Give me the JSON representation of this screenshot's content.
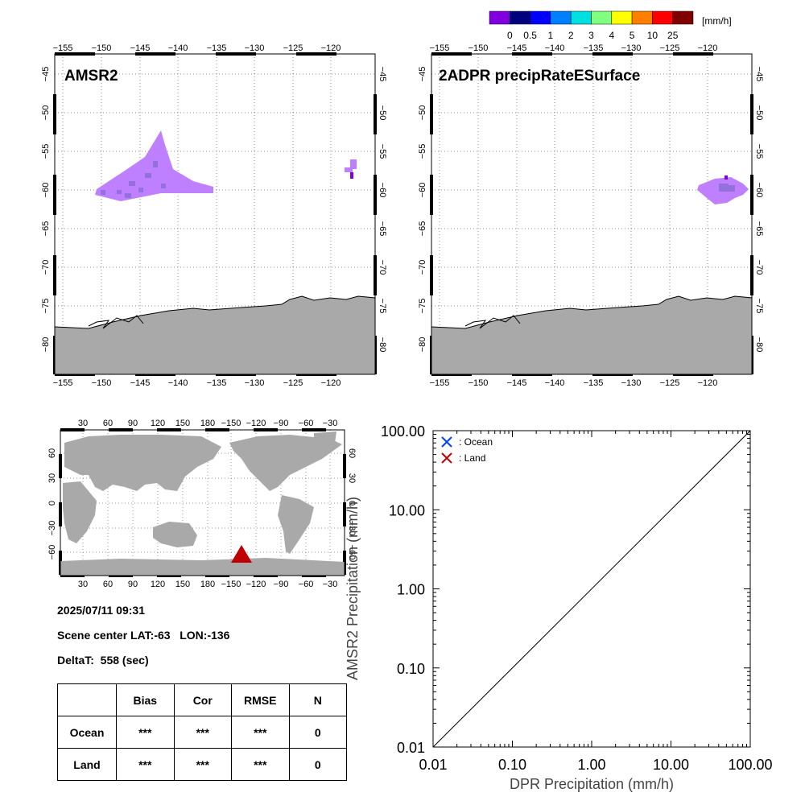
{
  "colorbar": {
    "unit": "[mm/h]",
    "colors": [
      "#8000e0",
      "#00007f",
      "#0000ff",
      "#0080ff",
      "#00e0e0",
      "#80ff80",
      "#ffff00",
      "#ff8000",
      "#ff0000",
      "#800000"
    ],
    "labels": [
      "0",
      "0.5",
      "1",
      "2",
      "3",
      "4",
      "5",
      "10",
      "25"
    ]
  },
  "maps": {
    "lon_ticks": [
      "−155",
      "−150",
      "−145",
      "−140",
      "−135",
      "−130",
      "−125",
      "−120"
    ],
    "lat_ticks": [
      "−45",
      "−50",
      "−55",
      "−60",
      "−65",
      "−70",
      "−75",
      "−80"
    ],
    "amsr2_title": "AMSR2",
    "dpr_title": "2ADPR precipRateESurface",
    "land_color": "#a9a9a9",
    "rain_color": "#bf80ff",
    "heavy_color": "#9370db"
  },
  "globe": {
    "lon_ticks": [
      "30",
      "60",
      "90",
      "120",
      "150",
      "180",
      "−150",
      "−120",
      "−90",
      "−60",
      "−30"
    ],
    "lat_ticks": [
      "60",
      "30",
      "0",
      "−30",
      "−60"
    ],
    "marker_color": "#c00000"
  },
  "info": {
    "datetime": "2025/07/11 09:31",
    "center": "Scene center LAT:-63   LON:-136",
    "deltat": "DeltaT:  558 (sec)"
  },
  "stats": {
    "headers": [
      "",
      "Bias",
      "Cor",
      "RMSE",
      "N"
    ],
    "rows": [
      {
        "label": "Ocean",
        "bias": "***",
        "cor": "***",
        "rmse": "***",
        "n": "0"
      },
      {
        "label": "Land",
        "bias": "***",
        "cor": "***",
        "rmse": "***",
        "n": "0"
      }
    ]
  },
  "chart_data": {
    "type": "scatter",
    "xlabel": "DPR Precipitation (mm/h)",
    "ylabel": "AMSR2 Precipitation (mm/h)",
    "xscale": "log",
    "yscale": "log",
    "xlim": [
      0.01,
      100
    ],
    "ylim": [
      0.01,
      100
    ],
    "x_ticks": [
      "0.01",
      "0.10",
      "1.00",
      "10.00",
      "100.00"
    ],
    "y_ticks": [
      "0.01",
      "0.10",
      "1.00",
      "10.00",
      "100.00"
    ],
    "grid": false,
    "legend_position": "top-left",
    "series": [
      {
        "name": ": Ocean",
        "marker": "x",
        "color": "#0040ff",
        "points": []
      },
      {
        "name": ": Land",
        "marker": "x",
        "color": "#c00000",
        "points": []
      }
    ],
    "reference_line": "1:1"
  }
}
